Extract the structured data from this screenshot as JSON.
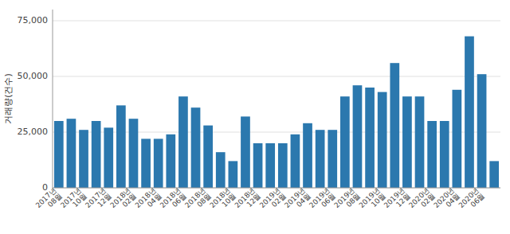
{
  "chart_data": {
    "type": "bar",
    "ylabel": "거래량(건수)",
    "categories": [
      "2017년\n08월",
      null,
      "2017년\n10월",
      null,
      "2017년\n12월",
      null,
      "2018년\n02월",
      null,
      "2018년\n04월",
      null,
      "2018년\n06월",
      null,
      "2018년\n08월",
      null,
      "2018년\n10월",
      null,
      "2018년\n12월",
      null,
      "2019년\n02월",
      null,
      "2019년\n04월",
      null,
      "2019년\n06월",
      null,
      "2019년\n08월",
      null,
      "2019년\n10월",
      null,
      "2019년\n12월",
      null,
      "2020년\n02월",
      null,
      "2020년\n04월",
      null,
      "2020년\n06월",
      null
    ],
    "values": [
      30000,
      31000,
      26000,
      30000,
      27000,
      37000,
      31000,
      22000,
      22000,
      24000,
      41000,
      36000,
      28000,
      16000,
      12000,
      32000,
      20000,
      20000,
      20000,
      24000,
      29000,
      26000,
      26000,
      41000,
      46000,
      45000,
      43000,
      56000,
      41000,
      41000,
      30000,
      30000,
      44000,
      68000,
      51000,
      12000
    ],
    "color": "#2b78ae",
    "ylim": [
      0,
      80000
    ],
    "yticks": [
      0,
      {
        "value": 25000,
        "label": "25,000"
      },
      {
        "value": 50000,
        "label": "50,000"
      },
      {
        "value": 75000,
        "label": "75,000"
      }
    ],
    "grid": true
  }
}
